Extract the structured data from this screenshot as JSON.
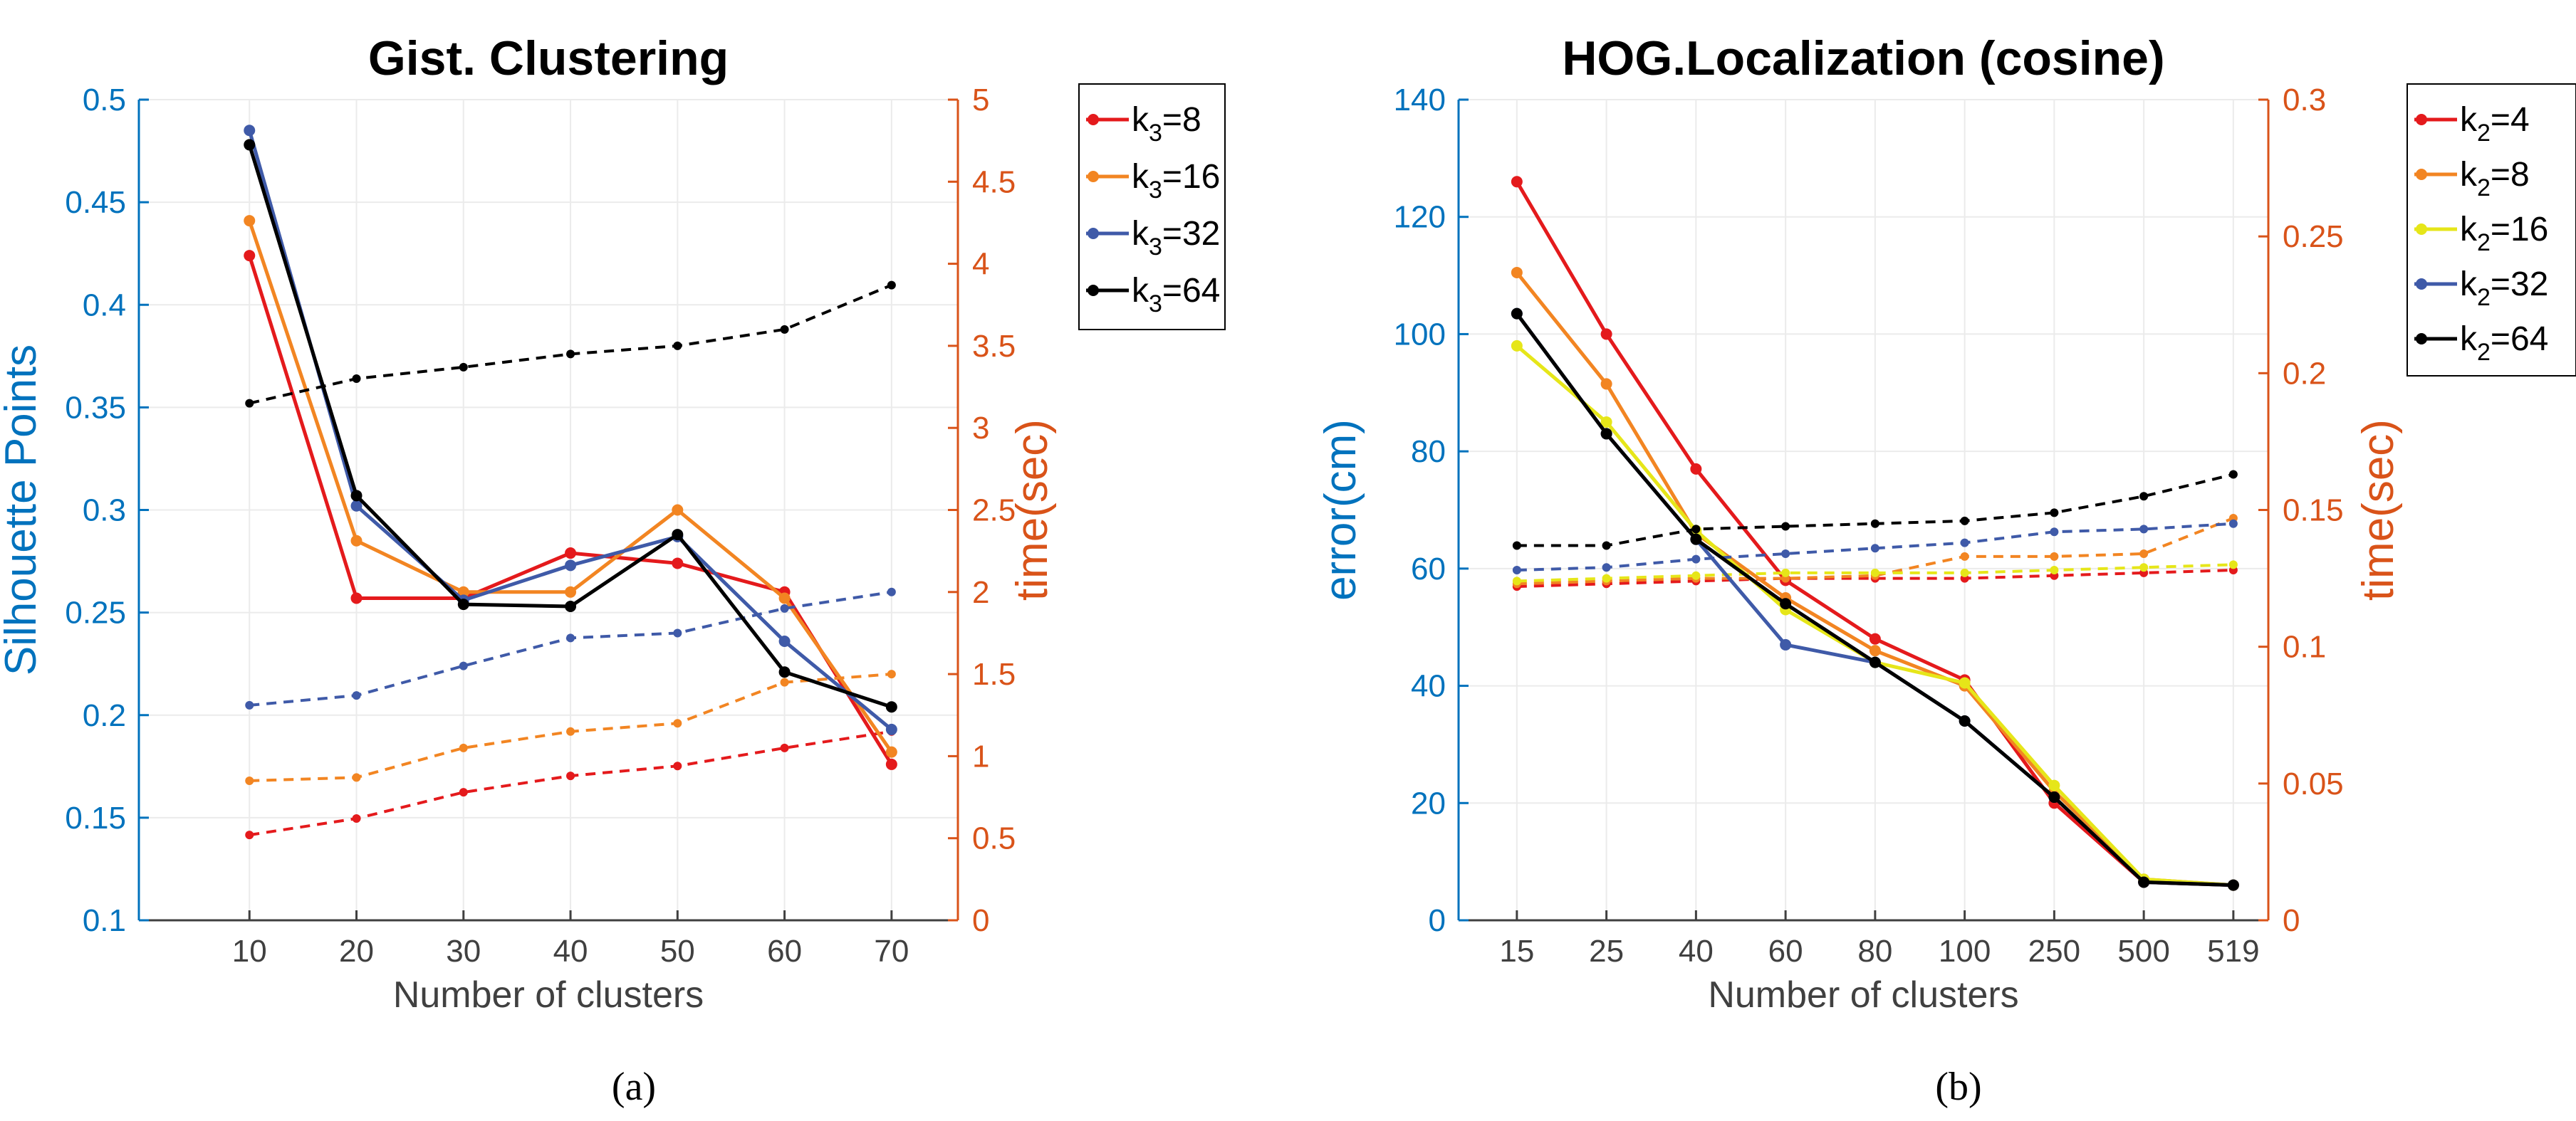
{
  "colors": {
    "left_axis": "#0072BD",
    "right_axis": "#D95319",
    "series": [
      "#E41A1C",
      "#F28522",
      "#E6E619",
      "#3F5AA8",
      "#000000"
    ]
  },
  "chart_data": [
    {
      "type": "line",
      "caption": "(a)",
      "title": "Gist. Clustering",
      "xlabel": "Number of clusters",
      "ylabel": "Silhouette Points",
      "y2label": "time(sec)",
      "categories": [
        "10",
        "20",
        "30",
        "40",
        "50",
        "60",
        "70"
      ],
      "ylim": [
        0.1,
        0.5
      ],
      "yticks": [
        "0.1",
        "0.15",
        "0.2",
        "0.25",
        "0.3",
        "0.35",
        "0.4",
        "0.45",
        "0.5"
      ],
      "y2lim": [
        0,
        5
      ],
      "y2ticks": [
        "0",
        "0.5",
        "1",
        "1.5",
        "2",
        "2.5",
        "3",
        "3.5",
        "4",
        "4.5",
        "5"
      ],
      "grid": true,
      "legend_position": "outside-top-right",
      "series": [
        {
          "legend_base": "k",
          "legend_sub": "3",
          "legend_value": "=8",
          "color_index": 0,
          "values": [
            0.424,
            0.257,
            0.257,
            0.279,
            0.274,
            0.26,
            0.176
          ],
          "time": [
            0.52,
            0.62,
            0.78,
            0.88,
            0.94,
            1.05,
            1.15
          ]
        },
        {
          "legend_base": "k",
          "legend_sub": "3",
          "legend_value": "=16",
          "color_index": 1,
          "values": [
            0.441,
            0.285,
            0.26,
            0.26,
            0.3,
            0.257,
            0.182
          ],
          "time": [
            0.85,
            0.87,
            1.05,
            1.15,
            1.2,
            1.45,
            1.5
          ]
        },
        {
          "legend_base": "k",
          "legend_sub": "3",
          "legend_value": "=32",
          "color_index": 3,
          "values": [
            0.485,
            0.302,
            0.256,
            0.273,
            0.287,
            0.236,
            0.193
          ],
          "time": [
            1.31,
            1.37,
            1.55,
            1.72,
            1.75,
            1.9,
            2.0
          ]
        },
        {
          "legend_base": "k",
          "legend_sub": "3",
          "legend_value": "=64",
          "color_index": 4,
          "values": [
            0.478,
            0.307,
            0.254,
            0.253,
            0.288,
            0.221,
            0.204
          ],
          "time": [
            3.15,
            3.3,
            3.37,
            3.45,
            3.5,
            3.6,
            3.87
          ]
        }
      ]
    },
    {
      "type": "line",
      "caption": "(b)",
      "title": "HOG.Localization (cosine)",
      "xlabel": "Number of clusters",
      "ylabel": "error(cm)",
      "y2label": "time(sec)",
      "categories": [
        "15",
        "25",
        "40",
        "60",
        "80",
        "100",
        "250",
        "500",
        "519"
      ],
      "ylim": [
        0,
        140
      ],
      "yticks": [
        "0",
        "20",
        "40",
        "60",
        "80",
        "100",
        "120",
        "140"
      ],
      "y2lim": [
        0,
        0.3
      ],
      "y2ticks": [
        "0",
        "0.05",
        "0.1",
        "0.15",
        "0.2",
        "0.25",
        "0.3"
      ],
      "grid": true,
      "legend_position": "outside-top-right",
      "series": [
        {
          "legend_base": "k",
          "legend_sub": "2",
          "legend_value": "=4",
          "color_index": 0,
          "values": [
            126,
            100,
            77,
            58,
            48,
            41,
            20,
            6.5,
            6
          ],
          "time": [
            0.122,
            0.123,
            0.124,
            0.125,
            0.125,
            0.125,
            0.126,
            0.127,
            0.128
          ]
        },
        {
          "legend_base": "k",
          "legend_sub": "2",
          "legend_value": "=8",
          "color_index": 1,
          "values": [
            110.5,
            91.5,
            66,
            55,
            46,
            40,
            22,
            7,
            6
          ],
          "time": [
            0.123,
            0.124,
            0.125,
            0.125,
            0.126,
            0.133,
            0.133,
            0.134,
            0.147
          ]
        },
        {
          "legend_base": "k",
          "legend_sub": "2",
          "legend_value": "=16",
          "color_index": 2,
          "values": [
            98,
            85,
            66.5,
            53,
            44,
            40.5,
            23,
            7,
            6
          ],
          "time": [
            0.124,
            0.125,
            0.126,
            0.127,
            0.127,
            0.127,
            0.128,
            0.129,
            0.13
          ]
        },
        {
          "legend_base": "k",
          "legend_sub": "2",
          "legend_value": "=32",
          "color_index": 3,
          "values": [
            103.5,
            83,
            65,
            47,
            44,
            34,
            21,
            6.5,
            6
          ],
          "time": [
            0.128,
            0.129,
            0.132,
            0.134,
            0.136,
            0.138,
            0.142,
            0.143,
            0.145
          ]
        },
        {
          "legend_base": "k",
          "legend_sub": "2",
          "legend_value": "=64",
          "color_index": 4,
          "values": [
            103.5,
            83,
            65,
            54,
            44,
            34,
            21,
            6.5,
            6
          ],
          "time": [
            0.137,
            0.137,
            0.143,
            0.144,
            0.145,
            0.146,
            0.149,
            0.155,
            0.163
          ]
        }
      ]
    }
  ]
}
